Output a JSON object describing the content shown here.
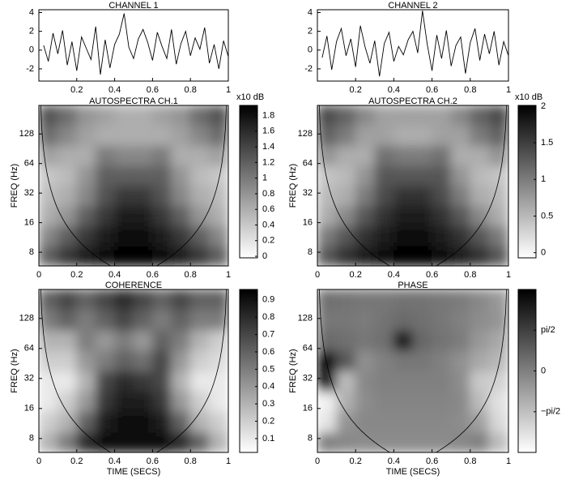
{
  "chart_data": [
    {
      "type": "line",
      "title": "CHANNEL 1",
      "color": "#000000",
      "x": [
        0.025,
        0.05,
        0.075,
        0.1,
        0.125,
        0.15,
        0.175,
        0.2,
        0.225,
        0.25,
        0.275,
        0.3,
        0.325,
        0.35,
        0.375,
        0.4,
        0.425,
        0.45,
        0.475,
        0.5,
        0.525,
        0.55,
        0.575,
        0.6,
        0.625,
        0.65,
        0.675,
        0.7,
        0.725,
        0.75,
        0.775,
        0.8,
        0.825,
        0.85,
        0.875,
        0.9,
        0.925,
        0.95,
        0.975,
        1.0
      ],
      "values": [
        0.5,
        -1.2,
        1.8,
        -0.4,
        2.1,
        -1.6,
        0.9,
        -2.2,
        1.4,
        0.2,
        -1.0,
        2.5,
        -2.6,
        1.1,
        -1.9,
        0.6,
        1.7,
        3.9,
        0.3,
        -0.9,
        1.2,
        2.2,
        0.8,
        -1.1,
        1.9,
        0.4,
        -0.9,
        2.2,
        -1.5,
        0.7,
        2.0,
        -0.6,
        1.3,
        0.1,
        2.4,
        -1.4,
        0.6,
        -2.0,
        1.0,
        -0.7
      ],
      "xlim": [
        0,
        1
      ],
      "xticks": [
        0.2,
        0.4,
        0.6,
        0.8,
        1
      ],
      "ylim": [
        -3.3,
        4.3
      ],
      "yticks": [
        -2,
        0,
        2,
        4
      ]
    },
    {
      "type": "line",
      "title": "CHANNEL 2",
      "color": "#000000",
      "x": [
        0.025,
        0.05,
        0.075,
        0.1,
        0.125,
        0.15,
        0.175,
        0.2,
        0.225,
        0.25,
        0.275,
        0.3,
        0.325,
        0.35,
        0.375,
        0.4,
        0.425,
        0.45,
        0.475,
        0.5,
        0.525,
        0.55,
        0.575,
        0.6,
        0.625,
        0.65,
        0.675,
        0.7,
        0.725,
        0.75,
        0.775,
        0.8,
        0.825,
        0.85,
        0.875,
        0.9,
        0.925,
        0.95,
        0.975,
        1.0
      ],
      "values": [
        -0.8,
        1.5,
        -2.1,
        0.9,
        2.3,
        -0.6,
        1.2,
        -1.8,
        2.6,
        0.3,
        -1.4,
        1.0,
        -2.8,
        0.7,
        1.9,
        -1.2,
        0.4,
        -0.5,
        1.1,
        2.0,
        -0.3,
        4.2,
        0.6,
        -2.2,
        1.6,
        -0.9,
        2.1,
        -1.7,
        0.5,
        1.4,
        -2.5,
        0.8,
        2.3,
        -1.1,
        1.7,
        -0.4,
        2.0,
        -1.6,
        0.9,
        -0.6
      ],
      "xlim": [
        0,
        1
      ],
      "xticks": [
        0.2,
        0.4,
        0.6,
        0.8,
        1
      ],
      "ylim": [
        -3.3,
        4.3
      ],
      "yticks": [
        -2,
        0,
        2,
        4
      ]
    },
    {
      "type": "heatmap",
      "title": "AUTOSPECTRA CH.1",
      "ylabel": "FREQ (Hz)",
      "log_y": true,
      "xlim": [
        0,
        1
      ],
      "xticks": [
        0,
        0.2,
        0.4,
        0.6,
        0.8,
        1
      ],
      "ylim": [
        5.8,
        250
      ],
      "yticks": [
        8,
        16,
        32,
        64,
        128
      ],
      "z": [
        [
          1.2,
          1.5,
          1.7,
          1.8,
          1.9,
          1.9,
          1.8,
          1.7,
          1.5,
          1.2
        ],
        [
          0.9,
          1.2,
          1.5,
          1.7,
          1.8,
          1.8,
          1.7,
          1.5,
          1.2,
          0.9
        ],
        [
          0.6,
          0.8,
          1.2,
          1.5,
          1.7,
          1.7,
          1.5,
          1.2,
          0.8,
          0.6
        ],
        [
          0.5,
          0.6,
          0.9,
          1.3,
          1.5,
          1.5,
          1.3,
          0.9,
          0.6,
          0.5
        ],
        [
          0.4,
          0.5,
          0.8,
          1.2,
          1.2,
          1.2,
          1.2,
          0.8,
          0.5,
          0.4
        ],
        [
          0.7,
          0.6,
          0.6,
          1.0,
          0.9,
          0.9,
          1.0,
          0.6,
          0.6,
          0.7
        ],
        [
          1.1,
          0.9,
          0.7,
          0.6,
          0.6,
          0.6,
          0.6,
          0.7,
          0.9,
          1.1
        ],
        [
          1.3,
          1.1,
          0.8,
          0.7,
          0.6,
          0.6,
          0.7,
          0.8,
          1.1,
          1.3
        ]
      ],
      "colorbar": {
        "title": "x10 dB",
        "lim": [
          -0.02,
          1.93
        ],
        "ticks": [
          0,
          0.2,
          0.4,
          0.6,
          0.8,
          1,
          1.2,
          1.4,
          1.6,
          1.8
        ]
      }
    },
    {
      "type": "heatmap",
      "title": "AUTOSPECTRA CH.2",
      "ylabel": "FREQ (Hz)",
      "log_y": true,
      "xlim": [
        0,
        1
      ],
      "xticks": [
        0,
        0.2,
        0.4,
        0.6,
        0.8,
        1
      ],
      "ylim": [
        5.8,
        250
      ],
      "yticks": [
        8,
        16,
        32,
        64,
        128
      ],
      "z": [
        [
          1.3,
          1.6,
          1.8,
          1.9,
          2.0,
          2.0,
          1.9,
          1.8,
          1.6,
          1.3
        ],
        [
          1.0,
          1.3,
          1.6,
          1.8,
          1.9,
          1.9,
          1.8,
          1.6,
          1.3,
          1.0
        ],
        [
          0.6,
          0.9,
          1.3,
          1.6,
          1.8,
          1.8,
          1.6,
          1.3,
          0.9,
          0.6
        ],
        [
          0.5,
          0.6,
          1.0,
          1.4,
          1.6,
          1.6,
          1.4,
          1.0,
          0.6,
          0.5
        ],
        [
          0.4,
          0.5,
          0.8,
          1.3,
          1.3,
          1.3,
          1.3,
          0.8,
          0.5,
          0.4
        ],
        [
          0.8,
          0.6,
          0.6,
          1.1,
          1.0,
          1.0,
          1.1,
          0.6,
          0.6,
          0.8
        ],
        [
          1.2,
          1.0,
          0.7,
          0.7,
          0.6,
          0.6,
          0.7,
          0.7,
          1.0,
          1.2
        ],
        [
          1.4,
          1.2,
          0.9,
          0.7,
          0.7,
          0.7,
          0.7,
          0.9,
          1.2,
          1.4
        ]
      ],
      "colorbar": {
        "title": "x10 dB",
        "lim": [
          -0.07,
          2.01
        ],
        "ticks": [
          0,
          0.5,
          1,
          1.5,
          2
        ]
      }
    },
    {
      "type": "heatmap",
      "title": "COHERENCE",
      "ylabel": "FREQ (Hz)",
      "xlabel": "TIME (SECS)",
      "log_y": true,
      "xlim": [
        0,
        1
      ],
      "xticks": [
        0,
        0.2,
        0.4,
        0.6,
        0.8,
        1
      ],
      "ylim": [
        5.8,
        250
      ],
      "yticks": [
        8,
        16,
        32,
        64,
        128
      ],
      "z": [
        [
          0.3,
          0.5,
          0.8,
          0.9,
          0.9,
          0.9,
          0.9,
          0.8,
          0.6,
          0.3
        ],
        [
          0.2,
          0.3,
          0.6,
          0.85,
          0.9,
          0.9,
          0.85,
          0.6,
          0.3,
          0.2
        ],
        [
          0.1,
          0.2,
          0.4,
          0.75,
          0.85,
          0.85,
          0.75,
          0.4,
          0.2,
          0.1
        ],
        [
          0.1,
          0.1,
          0.3,
          0.7,
          0.8,
          0.75,
          0.7,
          0.3,
          0.1,
          0.1
        ],
        [
          0.2,
          0.2,
          0.4,
          0.5,
          0.6,
          0.55,
          0.7,
          0.4,
          0.2,
          0.15
        ],
        [
          0.3,
          0.3,
          0.5,
          0.4,
          0.5,
          0.4,
          0.6,
          0.5,
          0.3,
          0.2
        ],
        [
          0.5,
          0.6,
          0.5,
          0.6,
          0.7,
          0.6,
          0.5,
          0.6,
          0.5,
          0.5
        ],
        [
          0.6,
          0.7,
          0.6,
          0.7,
          0.8,
          0.7,
          0.6,
          0.7,
          0.6,
          0.6
        ]
      ],
      "colorbar": {
        "lim": [
          0.02,
          0.96
        ],
        "ticks": [
          0.1,
          0.2,
          0.3,
          0.4,
          0.5,
          0.6,
          0.7,
          0.8,
          0.9
        ]
      }
    },
    {
      "type": "heatmap",
      "title": "PHASE",
      "ylabel": "FREQ (Hz)",
      "xlabel": "TIME (SECS)",
      "log_y": true,
      "xlim": [
        0,
        1
      ],
      "xticks": [
        0,
        0.2,
        0.4,
        0.6,
        0.8,
        1
      ],
      "ylim": [
        5.8,
        250
      ],
      "yticks": [
        8,
        16,
        32,
        64,
        128
      ],
      "z": [
        [
          0,
          -0.2,
          -0.3,
          -0.3,
          -0.3,
          -0.3,
          -0.3,
          -0.2,
          0,
          -1.5
        ],
        [
          -2.5,
          -0.5,
          -0.2,
          -0.2,
          -0.2,
          -0.2,
          -0.2,
          -0.3,
          -0.8,
          -2.2
        ],
        [
          -2.8,
          -1.2,
          -0.3,
          -0.1,
          -0.1,
          -0.1,
          -0.1,
          -0.2,
          -1.5,
          -2.4
        ],
        [
          2.6,
          -1.5,
          -0.2,
          0,
          0,
          0,
          0,
          -0.3,
          -1.8,
          -2.0
        ],
        [
          2.8,
          1.0,
          -0.4,
          0,
          0.2,
          0.2,
          0,
          -0.4,
          -1.0,
          -1.4
        ],
        [
          0.5,
          0.4,
          0.2,
          0.4,
          2.6,
          0.6,
          0.3,
          0.1,
          -0.6,
          -1.0
        ],
        [
          0.2,
          0.2,
          0.1,
          0.3,
          0.5,
          0.4,
          0.2,
          0,
          -0.3,
          -0.5
        ],
        [
          0.4,
          0.3,
          0.2,
          0.2,
          0.3,
          0.3,
          0.2,
          0.1,
          -0.2,
          -0.6
        ]
      ],
      "colorbar": {
        "lim": [
          -3.14,
          3.14
        ],
        "ticks": [
          {
            "value": 1.571,
            "label": "pi/2"
          },
          0,
          {
            "value": -1.571,
            "label": "−pi/2"
          }
        ]
      }
    }
  ]
}
